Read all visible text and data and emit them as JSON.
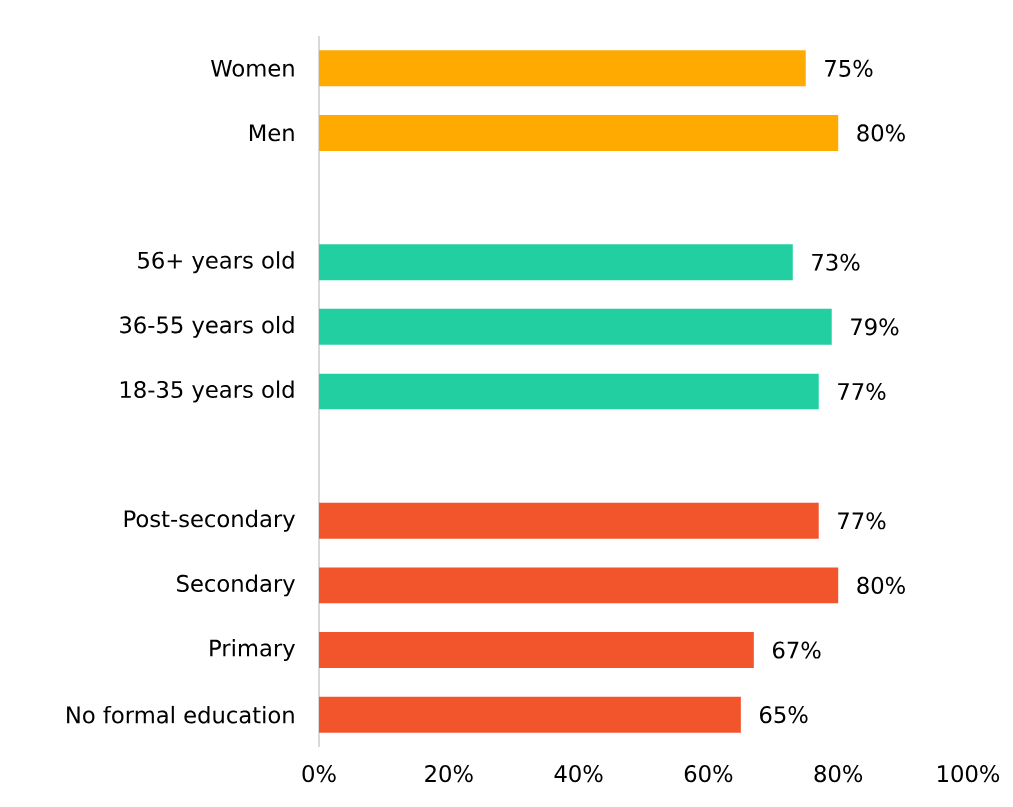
{
  "chart_data": {
    "type": "bar",
    "orientation": "horizontal",
    "categories": [
      "Women",
      "Men",
      null,
      "56+ years old",
      "36-55 years old",
      "18-35 years old",
      null,
      "Post-secondary",
      "Secondary",
      "Primary",
      "No formal education"
    ],
    "values": [
      75,
      80,
      null,
      73,
      79,
      77,
      null,
      77,
      80,
      67,
      65
    ],
    "colors": [
      "#ffaa00",
      "#ffaa00",
      null,
      "#22cfa0",
      "#22cfa0",
      "#22cfa0",
      null,
      "#f2552c",
      "#f2552c",
      "#f2552c",
      "#f2552c"
    ],
    "value_labels": [
      "75%",
      "80%",
      null,
      "73%",
      "79%",
      "77%",
      null,
      "77%",
      "80%",
      "67%",
      "65%"
    ],
    "xlim": [
      0,
      100
    ],
    "xticks": [
      {
        "value": 0,
        "label": "0%"
      },
      {
        "value": 20,
        "label": "20%"
      },
      {
        "value": 40,
        "label": "40%"
      },
      {
        "value": 60,
        "label": "60%"
      },
      {
        "value": 80,
        "label": "80%"
      },
      {
        "value": 100,
        "label": "100%"
      }
    ]
  }
}
